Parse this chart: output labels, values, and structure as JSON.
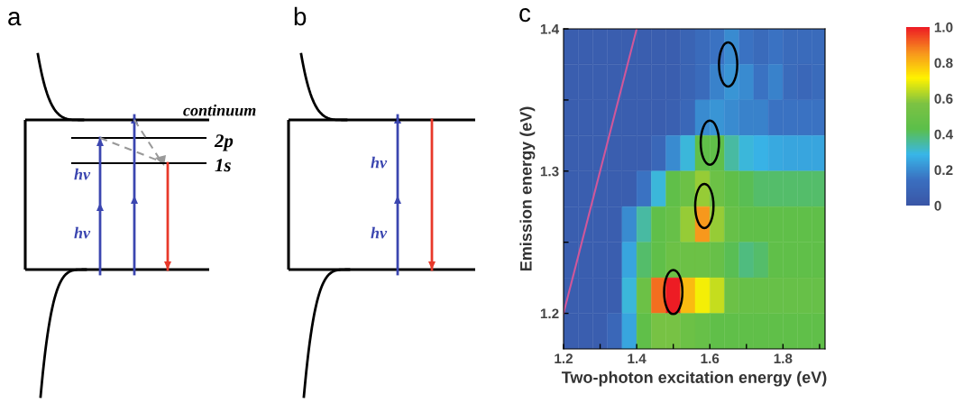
{
  "chart_data": [
    {
      "type": "other",
      "title": "a",
      "annotations": [
        "continuum",
        "2p",
        "1s",
        "hν",
        "hν"
      ]
    },
    {
      "type": "other",
      "title": "b",
      "annotations": [
        "hν",
        "hν"
      ]
    },
    {
      "type": "heatmap",
      "title": "c",
      "xlabel": "Two-photon excitation energy (eV)",
      "ylabel": "Emission energy (eV)",
      "x": [
        1.22,
        1.26,
        1.3,
        1.34,
        1.38,
        1.42,
        1.46,
        1.5,
        1.54,
        1.58,
        1.62,
        1.66,
        1.7,
        1.74,
        1.78,
        1.82,
        1.86,
        1.9
      ],
      "y": [
        1.3875,
        1.3625,
        1.3375,
        1.3125,
        1.2875,
        1.2625,
        1.2375,
        1.2125,
        1.1875
      ],
      "cells": [
        [
          0.05,
          0.05,
          0.05,
          0.05,
          0.05,
          0.05,
          0.05,
          0.05,
          0.08,
          0.12,
          0.15,
          0.2,
          0.15,
          0.12,
          0.15,
          0.12,
          0.12,
          0.12
        ],
        [
          0.05,
          0.05,
          0.05,
          0.05,
          0.05,
          0.05,
          0.05,
          0.05,
          0.08,
          0.12,
          0.18,
          0.22,
          0.2,
          0.15,
          0.18,
          0.12,
          0.1,
          0.12
        ],
        [
          0.05,
          0.05,
          0.05,
          0.05,
          0.05,
          0.05,
          0.05,
          0.06,
          0.1,
          0.2,
          0.22,
          0.2,
          0.18,
          0.18,
          0.15,
          0.15,
          0.15,
          0.15
        ],
        [
          0.05,
          0.05,
          0.05,
          0.05,
          0.05,
          0.05,
          0.1,
          0.2,
          0.3,
          0.45,
          0.45,
          0.35,
          0.3,
          0.28,
          0.26,
          0.25,
          0.25,
          0.25
        ],
        [
          0.05,
          0.05,
          0.05,
          0.05,
          0.05,
          0.15,
          0.3,
          0.45,
          0.5,
          0.6,
          0.5,
          0.45,
          0.42,
          0.4,
          0.4,
          0.4,
          0.4,
          0.4
        ],
        [
          0.05,
          0.05,
          0.05,
          0.05,
          0.2,
          0.35,
          0.45,
          0.48,
          0.6,
          0.85,
          0.6,
          0.48,
          0.45,
          0.45,
          0.45,
          0.45,
          0.45,
          0.45
        ],
        [
          0.05,
          0.05,
          0.05,
          0.05,
          0.25,
          0.4,
          0.45,
          0.5,
          0.5,
          0.5,
          0.48,
          0.42,
          0.38,
          0.4,
          0.45,
          0.45,
          0.45,
          0.45
        ],
        [
          0.05,
          0.05,
          0.05,
          0.05,
          0.3,
          0.5,
          0.9,
          1.0,
          0.8,
          0.7,
          0.65,
          0.5,
          0.48,
          0.48,
          0.48,
          0.48,
          0.48,
          0.48
        ],
        [
          0.05,
          0.05,
          0.05,
          0.1,
          0.25,
          0.45,
          0.55,
          0.55,
          0.5,
          0.48,
          0.45,
          0.45,
          0.45,
          0.45,
          0.45,
          0.45,
          0.45,
          0.45
        ]
      ],
      "series": [
        {
          "type": "line",
          "x": [
            1.2,
            1.4
          ],
          "values": [
            1.2,
            1.4
          ],
          "color": "#d0579a"
        }
      ],
      "xlim": [
        1.2,
        1.915
      ],
      "ylim": [
        1.175,
        1.4
      ],
      "xticks": [
        1.2,
        {
          "value": 1.3,
          "label": null
        },
        1.4,
        {
          "value": 1.5,
          "label": null
        },
        1.6,
        {
          "value": 1.7,
          "label": null
        },
        1.8,
        {
          "value": 1.9,
          "label": null
        }
      ],
      "yticks": [
        1.2,
        {
          "value": 1.25,
          "label": null
        },
        1.3,
        {
          "value": 1.35,
          "label": null
        },
        1.4
      ],
      "clim": [
        0,
        1
      ],
      "cticks": [
        0,
        0.2,
        0.4,
        0.6,
        0.8,
        {
          "value": 1,
          "label": "1.0"
        }
      ]
    }
  ]
}
